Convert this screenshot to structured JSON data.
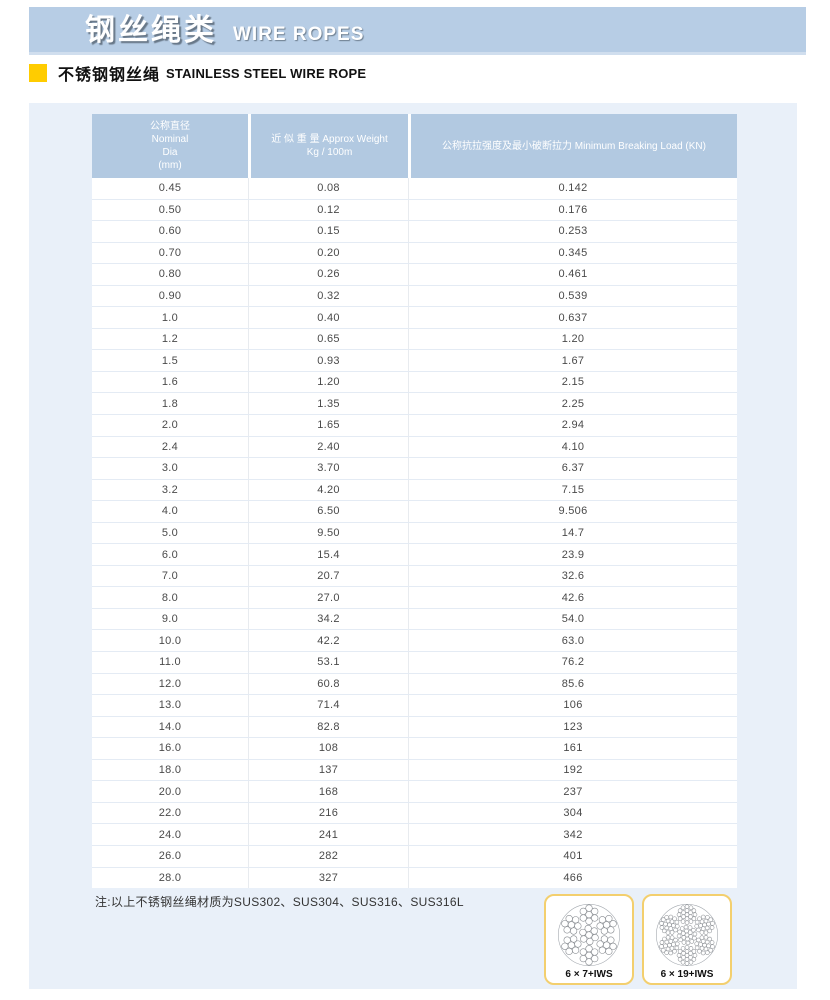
{
  "header": {
    "title_zh": "钢丝绳类",
    "title_en": "WIRE ROPES"
  },
  "subheader": {
    "title_zh": "不锈钢钢丝绳",
    "title_en": "STAINLESS STEEL WIRE ROPE"
  },
  "table": {
    "columns": [
      {
        "id": "nominal-dia",
        "lines": [
          "公称直径",
          "Nominal",
          "Dia",
          "(mm)"
        ]
      },
      {
        "id": "approx-weight",
        "lines": [
          "近 似 重 量 Approx Weight",
          "Kg / 100m"
        ]
      },
      {
        "id": "breaking-load",
        "lines": [
          "公称抗拉强度及最小破断拉力 Minimum Breaking Load (KN)"
        ]
      }
    ],
    "rows": [
      [
        "0.45",
        "0.08",
        "0.142"
      ],
      [
        "0.50",
        "0.12",
        "0.176"
      ],
      [
        "0.60",
        "0.15",
        "0.253"
      ],
      [
        "0.70",
        "0.20",
        "0.345"
      ],
      [
        "0.80",
        "0.26",
        "0.461"
      ],
      [
        "0.90",
        "0.32",
        "0.539"
      ],
      [
        "1.0",
        "0.40",
        "0.637"
      ],
      [
        "1.2",
        "0.65",
        "1.20"
      ],
      [
        "1.5",
        "0.93",
        "1.67"
      ],
      [
        "1.6",
        "1.20",
        "2.15"
      ],
      [
        "1.8",
        "1.35",
        "2.25"
      ],
      [
        "2.0",
        "1.65",
        "2.94"
      ],
      [
        "2.4",
        "2.40",
        "4.10"
      ],
      [
        "3.0",
        "3.70",
        "6.37"
      ],
      [
        "3.2",
        "4.20",
        "7.15"
      ],
      [
        "4.0",
        "6.50",
        "9.506"
      ],
      [
        "5.0",
        "9.50",
        "14.7"
      ],
      [
        "6.0",
        "15.4",
        "23.9"
      ],
      [
        "7.0",
        "20.7",
        "32.6"
      ],
      [
        "8.0",
        "27.0",
        "42.6"
      ],
      [
        "9.0",
        "34.2",
        "54.0"
      ],
      [
        "10.0",
        "42.2",
        "63.0"
      ],
      [
        "11.0",
        "53.1",
        "76.2"
      ],
      [
        "12.0",
        "60.8",
        "85.6"
      ],
      [
        "13.0",
        "71.4",
        "106"
      ],
      [
        "14.0",
        "82.8",
        "123"
      ],
      [
        "16.0",
        "108",
        "161"
      ],
      [
        "18.0",
        "137",
        "192"
      ],
      [
        "20.0",
        "168",
        "237"
      ],
      [
        "22.0",
        "216",
        "304"
      ],
      [
        "24.0",
        "241",
        "342"
      ],
      [
        "26.0",
        "282",
        "401"
      ],
      [
        "28.0",
        "327",
        "466"
      ]
    ]
  },
  "note": "注:以上不锈钢丝绳材质为SUS302、SUS304、SUS316、SUS316L",
  "diagrams": [
    {
      "label": "6 × 7+IWS",
      "icon": "rope-cross-section-6x7-icon",
      "wires_per_strand": 7
    },
    {
      "label": "6 × 19+IWS",
      "icon": "rope-cross-section-6x19-icon",
      "wires_per_strand": 19
    }
  ],
  "colors": {
    "header_bar": "#b7cde5",
    "accent_yellow": "#ffcc00",
    "panel_background": "#e9f0f9",
    "table_header": "#b2c9e1",
    "card_border": "#f3cf6e"
  }
}
